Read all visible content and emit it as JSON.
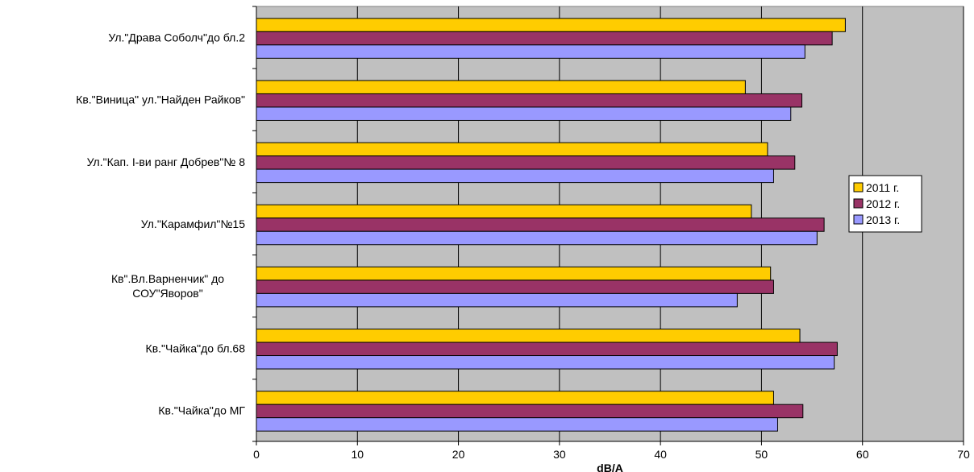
{
  "chart_data": {
    "type": "bar",
    "orientation": "horizontal",
    "categories": [
      "Ул.\"Драва Соболч\"до бл.2",
      "Кв.\"Виница\" ул.\"Найден Райков\"",
      "Ул.\"Кап. I-ви ранг Добрев\"№ 8",
      "Ул.\"Карамфил\"№15",
      "Кв\".Вл.Варненчик\" до СОУ\"Яворов\"",
      "Кв.\"Чайка\"до бл.68",
      "Кв.\"Чайка\"до МГ"
    ],
    "category_lines": [
      [
        "Ул.\"Драва Соболч\"до бл.2"
      ],
      [
        "Кв.\"Виница\" ул.\"Найден Райков\""
      ],
      [
        "Ул.\"Кап. I-ви ранг Добрев\"№ 8"
      ],
      [
        "Ул.\"Карамфил\"№15"
      ],
      [
        "Кв\".Вл.Варненчик\" до",
        "СОУ\"Яворов\""
      ],
      [
        "Кв.\"Чайка\"до бл.68"
      ],
      [
        "Кв.\"Чайка\"до МГ"
      ]
    ],
    "series": [
      {
        "name": "2011 г.",
        "color": "#FFCC00",
        "values": [
          58.3,
          48.4,
          50.6,
          49.0,
          50.9,
          53.8,
          51.2
        ]
      },
      {
        "name": "2012 г.",
        "color": "#993366",
        "values": [
          57.0,
          54.0,
          53.3,
          56.2,
          51.2,
          57.5,
          54.1
        ]
      },
      {
        "name": "2013 г.",
        "color": "#9999FF",
        "values": [
          54.3,
          52.9,
          51.2,
          55.5,
          47.6,
          57.2,
          51.6
        ]
      }
    ],
    "xlabel": "dB/A",
    "xlim": [
      0,
      70
    ],
    "xticks": [
      0,
      10,
      20,
      30,
      40,
      50,
      60,
      70
    ],
    "plot_background": "#C0C0C0",
    "grid": true,
    "legend_position": "right"
  }
}
